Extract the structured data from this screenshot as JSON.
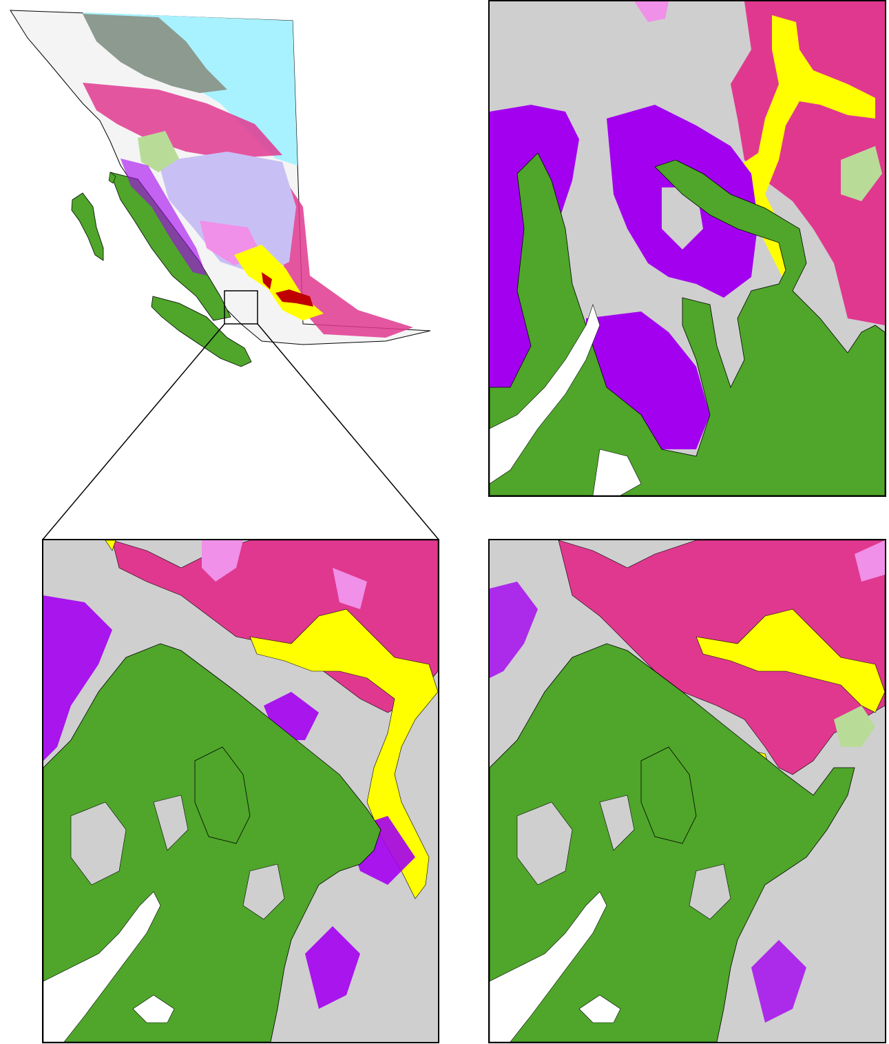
{
  "figure": {
    "panels": [
      {
        "id": "overview",
        "content": "province-overview-map",
        "has_inset_box": true
      },
      {
        "id": "detail-coarse",
        "content": "coarse-grid-zone-map"
      },
      {
        "id": "detail-smooth",
        "content": "smooth-zone-map"
      },
      {
        "id": "detail-fine",
        "content": "fine-zone-map"
      }
    ]
  },
  "palette": {
    "green": "#4fa62a",
    "grey": "#cfcfcf",
    "magenta": "#e0388f",
    "purple": "#a300f0",
    "yellow": "#ffff00",
    "cyan": "#a8f2ff",
    "lavender": "#c8c0f5",
    "pink": "#f090e8",
    "light-green": "#b8dc98",
    "red": "#c00000",
    "dark-grey": "#8c9a90",
    "white": "#ffffff",
    "outline": "#000000"
  }
}
